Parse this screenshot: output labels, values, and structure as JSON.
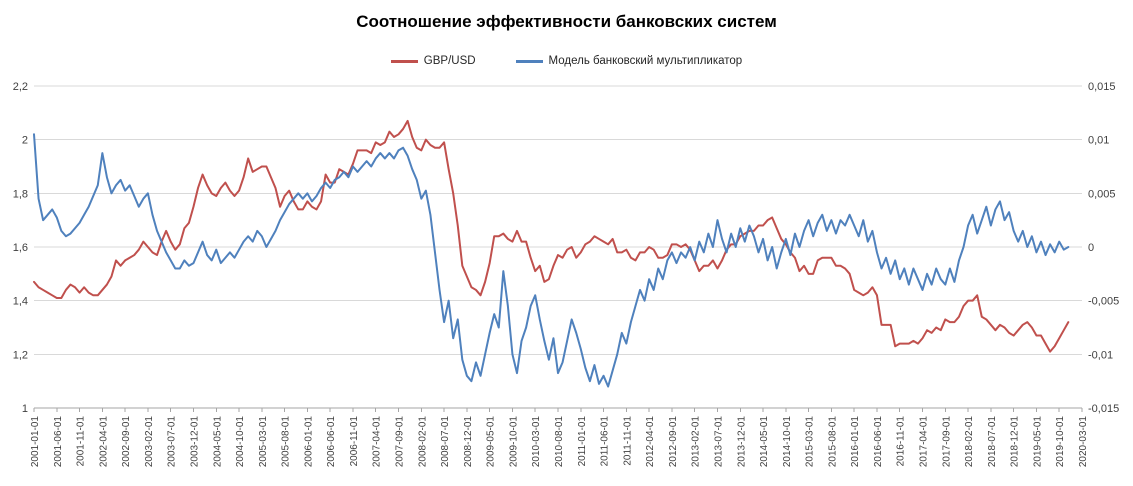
{
  "title": "Соотношение эффективности банковских систем",
  "legend": [
    {
      "label": "GBP/USD",
      "color": "#C0504D"
    },
    {
      "label": "Модель банковский мультипликатор",
      "color": "#4F81BD"
    }
  ],
  "colors": {
    "gridline": "#d9d9d9",
    "axis": "#a6a6a6",
    "red_series": "#C0504D",
    "blue_series": "#4F81BD"
  },
  "chart_data": {
    "type": "line",
    "title": "Соотношение эффективности банковских систем",
    "grid": "horizontal",
    "legend_position": "top",
    "x_months_per_tick": 5,
    "x_total_months": 230,
    "x_tick_labels": [
      "2001-01-01",
      "2001-06-01",
      "2001-11-01",
      "2002-04-01",
      "2002-09-01",
      "2003-02-01",
      "2003-07-01",
      "2003-12-01",
      "2004-05-01",
      "2004-10-01",
      "2005-03-01",
      "2005-08-01",
      "2006-01-01",
      "2006-06-01",
      "2006-11-01",
      "2007-04-01",
      "2007-09-01",
      "2008-02-01",
      "2008-07-01",
      "2008-12-01",
      "2009-05-01",
      "2009-10-01",
      "2010-03-01",
      "2010-08-01",
      "2011-01-01",
      "2011-06-01",
      "2011-11-01",
      "2012-04-01",
      "2012-09-01",
      "2013-02-01",
      "2013-07-01",
      "2013-12-01",
      "2014-05-01",
      "2014-10-01",
      "2015-03-01",
      "2015-08-01",
      "2016-01-01",
      "2016-06-01",
      "2016-11-01",
      "2017-04-01",
      "2017-09-01",
      "2018-02-01",
      "2018-07-01",
      "2018-12-01",
      "2019-05-01",
      "2019-10-01",
      "2020-03-01"
    ],
    "left_axis": {
      "min": 1,
      "max": 2.2,
      "tick_values": [
        2.2,
        2,
        1.8,
        1.6,
        1.4,
        1.2,
        1
      ],
      "tick_labels": [
        "2,2",
        "2",
        "1,8",
        "1,6",
        "1,4",
        "1,2",
        "1"
      ]
    },
    "right_axis": {
      "min": -0.015,
      "max": 0.015,
      "tick_values": [
        0.015,
        0.01,
        0.005,
        0,
        -0.005,
        -0.01,
        -0.015
      ],
      "tick_labels": [
        "0,015",
        "0,01",
        "0,005",
        "0",
        "-0,005",
        "-0,01",
        "-0,015"
      ]
    },
    "series": [
      {
        "name": "GBP/USD",
        "axis": "left",
        "color": "#C0504D",
        "start_month": "2001-01",
        "values": [
          1.47,
          1.45,
          1.44,
          1.43,
          1.42,
          1.41,
          1.41,
          1.44,
          1.46,
          1.45,
          1.43,
          1.45,
          1.43,
          1.42,
          1.42,
          1.44,
          1.46,
          1.49,
          1.55,
          1.53,
          1.55,
          1.56,
          1.57,
          1.59,
          1.62,
          1.6,
          1.58,
          1.57,
          1.62,
          1.66,
          1.62,
          1.59,
          1.61,
          1.67,
          1.69,
          1.75,
          1.82,
          1.87,
          1.83,
          1.8,
          1.79,
          1.82,
          1.84,
          1.81,
          1.79,
          1.81,
          1.86,
          1.93,
          1.88,
          1.89,
          1.9,
          1.9,
          1.86,
          1.82,
          1.75,
          1.79,
          1.81,
          1.77,
          1.74,
          1.74,
          1.77,
          1.75,
          1.74,
          1.77,
          1.87,
          1.84,
          1.84,
          1.89,
          1.88,
          1.87,
          1.91,
          1.96,
          1.96,
          1.96,
          1.95,
          1.99,
          1.98,
          1.99,
          2.03,
          2.01,
          2.02,
          2.04,
          2.07,
          2.01,
          1.97,
          1.96,
          2.0,
          1.98,
          1.97,
          1.97,
          1.99,
          1.89,
          1.8,
          1.68,
          1.53,
          1.49,
          1.45,
          1.44,
          1.42,
          1.47,
          1.54,
          1.64,
          1.64,
          1.65,
          1.63,
          1.62,
          1.66,
          1.62,
          1.62,
          1.56,
          1.51,
          1.53,
          1.47,
          1.48,
          1.53,
          1.57,
          1.56,
          1.59,
          1.6,
          1.56,
          1.58,
          1.61,
          1.62,
          1.64,
          1.63,
          1.62,
          1.61,
          1.63,
          1.58,
          1.58,
          1.59,
          1.56,
          1.55,
          1.58,
          1.58,
          1.6,
          1.59,
          1.56,
          1.56,
          1.57,
          1.61,
          1.61,
          1.6,
          1.61,
          1.59,
          1.55,
          1.51,
          1.53,
          1.53,
          1.55,
          1.52,
          1.55,
          1.59,
          1.61,
          1.61,
          1.64,
          1.65,
          1.66,
          1.66,
          1.68,
          1.68,
          1.7,
          1.71,
          1.67,
          1.63,
          1.61,
          1.58,
          1.56,
          1.51,
          1.53,
          1.5,
          1.5,
          1.55,
          1.56,
          1.56,
          1.56,
          1.53,
          1.53,
          1.52,
          1.5,
          1.44,
          1.43,
          1.42,
          1.43,
          1.45,
          1.42,
          1.31,
          1.31,
          1.31,
          1.23,
          1.24,
          1.24,
          1.24,
          1.25,
          1.24,
          1.26,
          1.29,
          1.28,
          1.3,
          1.29,
          1.33,
          1.32,
          1.32,
          1.34,
          1.38,
          1.4,
          1.4,
          1.42,
          1.34,
          1.33,
          1.31,
          1.29,
          1.31,
          1.3,
          1.28,
          1.27,
          1.29,
          1.31,
          1.32,
          1.3,
          1.27,
          1.27,
          1.24,
          1.21,
          1.23,
          1.26,
          1.29,
          1.32
        ]
      },
      {
        "name": "Модель банковский мультипликатор",
        "axis": "right",
        "color": "#4F81BD",
        "start_month": "2001-01",
        "values": [
          0.0105,
          0.0045,
          0.0025,
          0.003,
          0.0035,
          0.00275,
          0.0015,
          0.001,
          0.00125,
          0.00175,
          0.00225,
          0.003,
          0.00375,
          0.00475,
          0.00575,
          0.00875,
          0.0065,
          0.005,
          0.00575,
          0.00625,
          0.00525,
          0.00575,
          0.00475,
          0.00375,
          0.0045,
          0.005,
          0.003,
          0.0015,
          0.0005,
          -0.0005,
          -0.00125,
          -0.002,
          -0.002,
          -0.00125,
          -0.00175,
          -0.0015,
          -0.0005,
          0.0005,
          -0.00075,
          -0.00125,
          -0.00025,
          -0.0015,
          -0.001,
          -0.0005,
          -0.001,
          -0.00025,
          0.0005,
          0.001,
          0.0005,
          0.0015,
          0.001,
          0,
          0.00075,
          0.0015,
          0.0025,
          0.00325,
          0.004,
          0.0045,
          0.005,
          0.0045,
          0.005,
          0.00425,
          0.00475,
          0.0055,
          0.006,
          0.0055,
          0.00625,
          0.0065,
          0.007,
          0.0065,
          0.0075,
          0.007,
          0.0075,
          0.008,
          0.0075,
          0.00825,
          0.00875,
          0.00825,
          0.00875,
          0.00825,
          0.009,
          0.00925,
          0.0085,
          0.00725,
          0.00625,
          0.0045,
          0.00525,
          0.003,
          -0.0005,
          -0.004,
          -0.007,
          -0.005,
          -0.0085,
          -0.00675,
          -0.0105,
          -0.012,
          -0.0125,
          -0.01075,
          -0.012,
          -0.01,
          -0.008,
          -0.00625,
          -0.0075,
          -0.00225,
          -0.0055,
          -0.01,
          -0.01175,
          -0.00875,
          -0.0075,
          -0.0055,
          -0.0045,
          -0.00675,
          -0.00875,
          -0.0105,
          -0.0085,
          -0.01175,
          -0.01075,
          -0.00875,
          -0.00675,
          -0.008,
          -0.0095,
          -0.01125,
          -0.0125,
          -0.011,
          -0.01275,
          -0.012,
          -0.013,
          -0.0115,
          -0.01,
          -0.008,
          -0.009,
          -0.007,
          -0.0055,
          -0.004,
          -0.005,
          -0.003,
          -0.004,
          -0.002,
          -0.003,
          -0.00125,
          -0.0005,
          -0.0015,
          -0.0005,
          -0.001,
          0,
          -0.00125,
          0.0005,
          -0.0005,
          0.00125,
          0,
          0.0025,
          0.00075,
          -0.0005,
          0.00125,
          0,
          0.00175,
          0.0005,
          0.002,
          0.001,
          -0.0005,
          0.00075,
          -0.00125,
          0,
          -0.002,
          -0.0005,
          0.00075,
          -0.00075,
          0.00125,
          0,
          0.0015,
          0.0025,
          0.001,
          0.00225,
          0.003,
          0.0015,
          0.0025,
          0.00125,
          0.0025,
          0.002,
          0.003,
          0.002,
          0.001,
          0.0025,
          0.0005,
          0.0015,
          -0.0005,
          -0.002,
          -0.001,
          -0.0025,
          -0.00125,
          -0.003,
          -0.002,
          -0.0035,
          -0.002,
          -0.003,
          -0.004,
          -0.0025,
          -0.0035,
          -0.002,
          -0.003,
          -0.0035,
          -0.002,
          -0.00325,
          -0.00125,
          0,
          0.002,
          0.003,
          0.00125,
          0.0025,
          0.00375,
          0.002,
          0.0035,
          0.00425,
          0.0025,
          0.00325,
          0.0015,
          0.0005,
          0.0015,
          0,
          0.001,
          -0.0005,
          0.0005,
          -0.00075,
          0.00025,
          -0.0005,
          0.0005,
          -0.00025,
          0
        ]
      }
    ]
  }
}
